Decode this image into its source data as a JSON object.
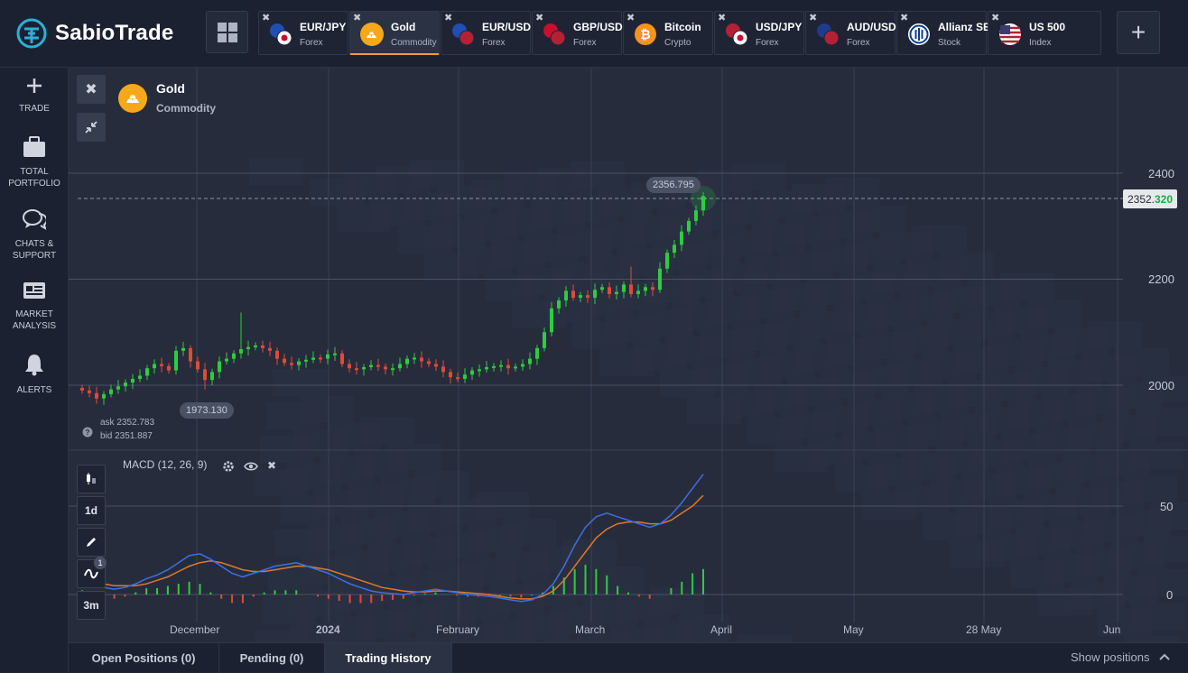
{
  "brand": {
    "name": "SabioTrade"
  },
  "tabs": [
    {
      "name": "EUR/JPY",
      "category": "Forex",
      "icon": "eu-jp-flags-icon",
      "active": false
    },
    {
      "name": "Gold",
      "category": "Commodity",
      "icon": "gold-bars-icon",
      "active": true
    },
    {
      "name": "EUR/USD",
      "category": "Forex",
      "icon": "eu-us-flags-icon",
      "active": false
    },
    {
      "name": "GBP/USD",
      "category": "Forex",
      "icon": "uk-us-flags-icon",
      "active": false
    },
    {
      "name": "Bitcoin",
      "category": "Crypto",
      "icon": "bitcoin-icon",
      "active": false
    },
    {
      "name": "USD/JPY",
      "category": "Forex",
      "icon": "us-jp-flags-icon",
      "active": false
    },
    {
      "name": "AUD/USD",
      "category": "Forex",
      "icon": "au-us-flags-icon",
      "active": false
    },
    {
      "name": "Allianz SE",
      "category": "Stock",
      "icon": "allianz-icon",
      "active": false
    },
    {
      "name": "US 500",
      "category": "Index",
      "icon": "us-flag-icon",
      "active": false
    }
  ],
  "sidebar": [
    {
      "label": "TRADE",
      "icon": "plus-icon"
    },
    {
      "label": "TOTAL\nPORTFOLIO",
      "icon": "briefcase-icon"
    },
    {
      "label": "CHATS &\nSUPPORT",
      "icon": "chat-bubbles-icon"
    },
    {
      "label": "MARKET\nANALYSIS",
      "icon": "newspaper-icon"
    },
    {
      "label": "ALERTS",
      "icon": "bell-icon"
    }
  ],
  "asset": {
    "name": "Gold",
    "category": "Commodity"
  },
  "price": {
    "current_main": "2352.",
    "current_highlight": "320",
    "high_bubble": "2356.795",
    "low_bubble": "1973.130",
    "ask": "ask 2352.783",
    "bid": "bid 2351.887"
  },
  "toolbar": {
    "timeframe": "1d",
    "range": "3m",
    "indicator_count": "1"
  },
  "macd": {
    "label": "MACD (12, 26, 9)"
  },
  "bottom": {
    "tabs": [
      "Open Positions (0)",
      "Pending (0)",
      "Trading History"
    ],
    "active_tab": "Trading History",
    "show_positions": "Show positions"
  },
  "colors": {
    "up": "#2ecc40",
    "down": "#e04a3a",
    "macd": "#3f6fe0",
    "signal": "#e0782a",
    "accent": "#f29d2c"
  },
  "chart_data": {
    "type": "candlestick",
    "y_axis": {
      "ticks": [
        2000,
        2200,
        2400
      ],
      "range": [
        1900,
        2520
      ]
    },
    "x_axis": {
      "labels": [
        "December",
        "2024",
        "February",
        "March",
        "April",
        "May",
        "28 May",
        "Jun"
      ]
    },
    "current_price": 2352.32,
    "close_series": [
      1990,
      1985,
      1975,
      1983,
      1992,
      1998,
      2005,
      2012,
      2018,
      2032,
      2040,
      2036,
      2028,
      2065,
      2070,
      2045,
      2030,
      2010,
      2025,
      2045,
      2050,
      2060,
      2068,
      2072,
      2075,
      2070,
      2065,
      2050,
      2042,
      2038,
      2045,
      2048,
      2052,
      2050,
      2058,
      2060,
      2040,
      2032,
      2030,
      2034,
      2038,
      2035,
      2030,
      2032,
      2040,
      2050,
      2052,
      2045,
      2040,
      2035,
      2025,
      2015,
      2012,
      2020,
      2028,
      2030,
      2034,
      2036,
      2038,
      2032,
      2035,
      2040,
      2050,
      2070,
      2100,
      2145,
      2160,
      2178,
      2165,
      2170,
      2165,
      2180,
      2185,
      2172,
      2176,
      2190,
      2172,
      2178,
      2185,
      2180,
      2220,
      2250,
      2265,
      2290,
      2310,
      2330,
      2352
    ],
    "macd_values": [
      10,
      6,
      4,
      3,
      4,
      6,
      9,
      11,
      14,
      18,
      22,
      23,
      20,
      16,
      12,
      10,
      12,
      14,
      16,
      17,
      18,
      16,
      14,
      12,
      9,
      6,
      4,
      2,
      1,
      0.5,
      0,
      1,
      2,
      3,
      2,
      1,
      0,
      -0.5,
      -1,
      -2,
      -3,
      -4,
      -3,
      0,
      6,
      16,
      28,
      38,
      44,
      46,
      44,
      42,
      40,
      38,
      40,
      45,
      52,
      60,
      68
    ],
    "signal_values": [
      8,
      7,
      6,
      5,
      5,
      5,
      6,
      8,
      10,
      13,
      16,
      18,
      19,
      18,
      16,
      14,
      13,
      13,
      14,
      15,
      16,
      16,
      15,
      14,
      12,
      10,
      8,
      6,
      4,
      3,
      2,
      1.5,
      1.5,
      2,
      2,
      1.5,
      1,
      0.5,
      0,
      -1,
      -2,
      -2.5,
      -2.5,
      -1,
      2,
      8,
      16,
      24,
      32,
      37,
      40,
      41,
      41,
      40,
      40,
      42,
      46,
      50,
      56
    ]
  }
}
